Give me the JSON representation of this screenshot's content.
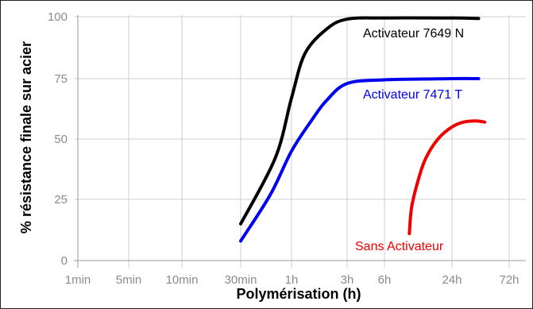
{
  "chart_data": {
    "type": "line",
    "xlabel": "Polymérisation (h)",
    "ylabel": "% résistance finale sur acier",
    "x_scale": "log",
    "x_ticks": [
      {
        "label": "1min",
        "hours": 0.0167
      },
      {
        "label": "5min",
        "hours": 0.0833
      },
      {
        "label": "10min",
        "hours": 0.1667
      },
      {
        "label": "30min",
        "hours": 0.5
      },
      {
        "label": "1h",
        "hours": 1
      },
      {
        "label": "3h",
        "hours": 3
      },
      {
        "label": "6h",
        "hours": 6
      },
      {
        "label": "24h",
        "hours": 24
      },
      {
        "label": "72h",
        "hours": 72
      }
    ],
    "y_ticks": [
      "0",
      "25",
      "50",
      "75",
      "100"
    ],
    "ylim": [
      0,
      100
    ],
    "grid": true,
    "series": [
      {
        "name": "Activateur 7649 N",
        "color": "#000000",
        "points": [
          [
            0.5,
            15
          ],
          [
            0.8,
            42
          ],
          [
            1.0,
            67
          ],
          [
            1.3,
            85
          ],
          [
            2,
            95
          ],
          [
            3,
            99
          ],
          [
            6,
            99.5
          ],
          [
            24,
            99.5
          ],
          [
            40,
            99.3
          ]
        ]
      },
      {
        "name": "Activateur 7471 T",
        "color": "#0000ee",
        "points": [
          [
            0.5,
            8
          ],
          [
            0.75,
            27
          ],
          [
            1.0,
            45
          ],
          [
            1.5,
            58
          ],
          [
            2,
            66
          ],
          [
            3,
            73
          ],
          [
            6,
            74.5
          ],
          [
            24,
            75
          ],
          [
            40,
            75
          ]
        ]
      },
      {
        "name": "Sans Activateur",
        "color": "#ee0000",
        "points": [
          [
            10,
            11
          ],
          [
            10.5,
            22
          ],
          [
            12,
            33
          ],
          [
            14,
            42
          ],
          [
            18,
            50
          ],
          [
            24,
            55
          ],
          [
            30,
            57
          ],
          [
            38,
            57.5
          ],
          [
            45,
            57
          ]
        ]
      }
    ]
  }
}
